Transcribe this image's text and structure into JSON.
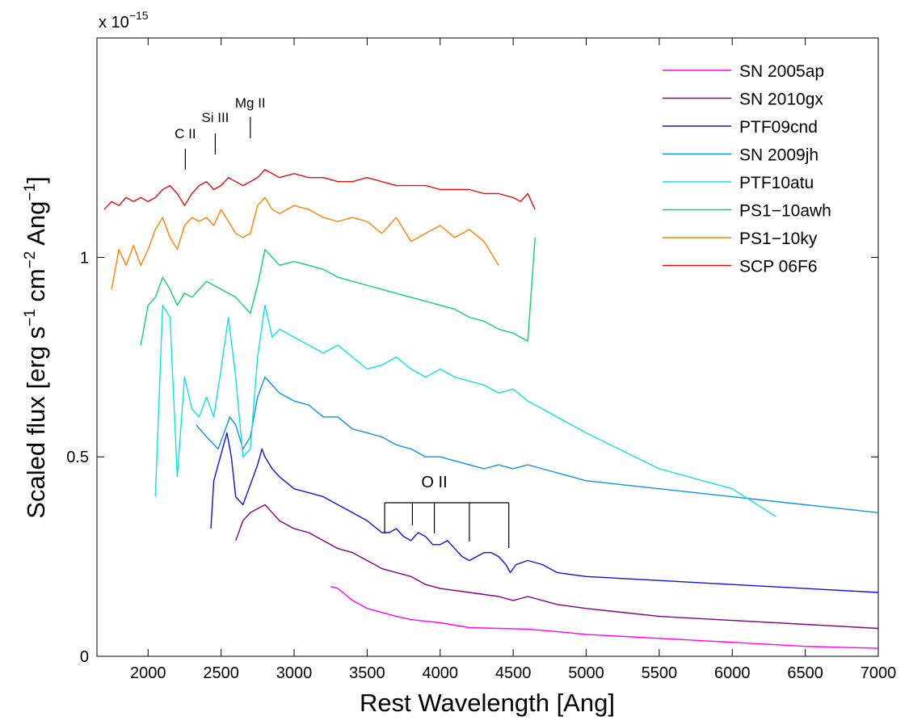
{
  "chart_data": {
    "type": "line",
    "xlabel": "Rest Wavelength [Ang]",
    "ylabel_parts": [
      "Scaled flux [erg s",
      "−1",
      " cm",
      "−2",
      " Ang",
      "−1",
      "]"
    ],
    "scale_note_base": "x 10",
    "scale_note_exp": "−15",
    "xlim": [
      1650,
      7000
    ],
    "ylim": [
      0,
      1.55
    ],
    "xticks": [
      2000,
      2500,
      3000,
      3500,
      4000,
      4500,
      5000,
      5500,
      6000,
      6500,
      7000
    ],
    "xtick_labels": [
      "2000",
      "2500",
      "3000",
      "3500",
      "4000",
      "4500",
      "5000",
      "5500",
      "6000",
      "6500",
      "7000"
    ],
    "yticks": [
      0,
      0.5,
      1
    ],
    "ytick_labels": [
      "0",
      "0.5",
      "1"
    ],
    "legend_position": "top-right",
    "annotations": {
      "uv": [
        {
          "label": "C II",
          "x": 2255
        },
        {
          "label": "Si III",
          "x": 2460
        },
        {
          "label": "Mg II",
          "x": 2700
        }
      ],
      "oii": {
        "label": "O II",
        "lines": [
          3620,
          3810,
          3960,
          4200,
          4470
        ]
      }
    },
    "series": [
      {
        "name": "SN 2005ap",
        "color": "#ff00ff",
        "x": [
          3250,
          3300,
          3350,
          3400,
          3450,
          3500,
          3600,
          3700,
          3800,
          3900,
          4000,
          4100,
          4200,
          4400,
          4600,
          4800,
          5000,
          5500,
          6000,
          6500,
          7000
        ],
        "y": [
          0.175,
          0.17,
          0.155,
          0.14,
          0.13,
          0.12,
          0.11,
          0.1,
          0.092,
          0.088,
          0.084,
          0.078,
          0.072,
          0.07,
          0.068,
          0.062,
          0.055,
          0.045,
          0.035,
          0.025,
          0.02
        ]
      },
      {
        "name": "SN 2010gx",
        "color": "#800080",
        "x": [
          2600,
          2650,
          2700,
          2750,
          2800,
          2850,
          2900,
          3000,
          3100,
          3200,
          3300,
          3400,
          3500,
          3600,
          3700,
          3800,
          3900,
          4000,
          4200,
          4400,
          4500,
          4600,
          4800,
          5000,
          5500,
          6000,
          6500,
          7000
        ],
        "y": [
          0.29,
          0.34,
          0.36,
          0.37,
          0.38,
          0.36,
          0.34,
          0.32,
          0.31,
          0.29,
          0.27,
          0.26,
          0.24,
          0.22,
          0.21,
          0.2,
          0.18,
          0.17,
          0.16,
          0.15,
          0.14,
          0.15,
          0.13,
          0.12,
          0.1,
          0.09,
          0.08,
          0.07
        ]
      },
      {
        "name": "PTF09cnd",
        "color": "#1010e0",
        "x": [
          2430,
          2450,
          2480,
          2510,
          2540,
          2570,
          2600,
          2650,
          2700,
          2750,
          2780,
          2800,
          2850,
          2900,
          3000,
          3100,
          3200,
          3300,
          3400,
          3500,
          3600,
          3650,
          3700,
          3750,
          3800,
          3850,
          3900,
          3950,
          4000,
          4050,
          4100,
          4150,
          4200,
          4250,
          4300,
          4350,
          4400,
          4450,
          4480,
          4520,
          4600,
          4700,
          4800,
          5000,
          5500,
          6000,
          6500,
          7000
        ],
        "y": [
          0.32,
          0.44,
          0.48,
          0.52,
          0.56,
          0.5,
          0.4,
          0.38,
          0.43,
          0.48,
          0.52,
          0.5,
          0.47,
          0.45,
          0.42,
          0.41,
          0.4,
          0.38,
          0.36,
          0.34,
          0.31,
          0.31,
          0.32,
          0.3,
          0.29,
          0.31,
          0.3,
          0.28,
          0.28,
          0.29,
          0.27,
          0.25,
          0.24,
          0.25,
          0.26,
          0.26,
          0.25,
          0.23,
          0.21,
          0.23,
          0.24,
          0.23,
          0.21,
          0.2,
          0.19,
          0.18,
          0.17,
          0.16
        ]
      },
      {
        "name": "SN 2009jh",
        "color": "#1090e8",
        "x": [
          2330,
          2400,
          2480,
          2520,
          2560,
          2600,
          2650,
          2700,
          2750,
          2800,
          2850,
          2900,
          3000,
          3100,
          3200,
          3300,
          3400,
          3500,
          3600,
          3700,
          3800,
          3900,
          4000,
          4100,
          4200,
          4300,
          4400,
          4500,
          4600,
          4700,
          4800,
          5000,
          5500,
          6000,
          6500,
          7000
        ],
        "y": [
          0.58,
          0.55,
          0.52,
          0.56,
          0.6,
          0.58,
          0.52,
          0.55,
          0.65,
          0.7,
          0.68,
          0.66,
          0.64,
          0.63,
          0.6,
          0.6,
          0.57,
          0.56,
          0.55,
          0.53,
          0.52,
          0.5,
          0.5,
          0.49,
          0.48,
          0.47,
          0.48,
          0.47,
          0.48,
          0.47,
          0.46,
          0.44,
          0.42,
          0.4,
          0.38,
          0.36
        ]
      },
      {
        "name": "PTF10atu",
        "color": "#10e0e0",
        "x": [
          2050,
          2100,
          2150,
          2200,
          2250,
          2300,
          2350,
          2400,
          2450,
          2500,
          2550,
          2600,
          2650,
          2700,
          2750,
          2800,
          2850,
          2900,
          3000,
          3100,
          3200,
          3300,
          3400,
          3500,
          3600,
          3700,
          3800,
          3900,
          4000,
          4100,
          4200,
          4300,
          4400,
          4500,
          4600,
          4700,
          4800,
          5000,
          5500,
          6000,
          6300
        ],
        "y": [
          0.4,
          0.88,
          0.85,
          0.45,
          0.7,
          0.62,
          0.6,
          0.65,
          0.6,
          0.72,
          0.85,
          0.7,
          0.5,
          0.52,
          0.75,
          0.88,
          0.8,
          0.82,
          0.8,
          0.78,
          0.76,
          0.78,
          0.75,
          0.72,
          0.73,
          0.75,
          0.72,
          0.7,
          0.72,
          0.7,
          0.69,
          0.68,
          0.66,
          0.67,
          0.64,
          0.62,
          0.6,
          0.56,
          0.47,
          0.42,
          0.35
        ]
      },
      {
        "name": "PS1−10awh",
        "color": "#10d070",
        "x": [
          1950,
          2000,
          2050,
          2100,
          2150,
          2200,
          2250,
          2300,
          2350,
          2400,
          2450,
          2500,
          2550,
          2600,
          2650,
          2700,
          2750,
          2800,
          2850,
          2900,
          3000,
          3100,
          3200,
          3300,
          3400,
          3500,
          3600,
          3700,
          3800,
          3900,
          4000,
          4100,
          4200,
          4300,
          4400,
          4500,
          4600,
          4650
        ],
        "y": [
          0.78,
          0.88,
          0.9,
          0.95,
          0.92,
          0.88,
          0.91,
          0.9,
          0.92,
          0.94,
          0.93,
          0.92,
          0.91,
          0.9,
          0.88,
          0.86,
          0.93,
          1.02,
          1.0,
          0.98,
          0.99,
          0.98,
          0.97,
          0.95,
          0.94,
          0.93,
          0.92,
          0.91,
          0.9,
          0.89,
          0.88,
          0.87,
          0.85,
          0.84,
          0.82,
          0.81,
          0.79,
          1.05
        ]
      },
      {
        "name": "PS1−10ky",
        "color": "#ff8000",
        "x": [
          1750,
          1800,
          1850,
          1900,
          1950,
          2000,
          2050,
          2100,
          2150,
          2200,
          2250,
          2300,
          2350,
          2400,
          2450,
          2500,
          2550,
          2600,
          2650,
          2700,
          2750,
          2800,
          2850,
          2900,
          3000,
          3100,
          3200,
          3300,
          3400,
          3500,
          3600,
          3700,
          3800,
          3900,
          4000,
          4100,
          4200,
          4300,
          4400
        ],
        "y": [
          0.92,
          1.02,
          0.98,
          1.03,
          0.98,
          1.02,
          1.07,
          1.1,
          1.05,
          1.02,
          1.08,
          1.1,
          1.09,
          1.1,
          1.08,
          1.12,
          1.09,
          1.06,
          1.05,
          1.06,
          1.13,
          1.15,
          1.12,
          1.11,
          1.13,
          1.12,
          1.1,
          1.09,
          1.1,
          1.09,
          1.06,
          1.1,
          1.04,
          1.06,
          1.08,
          1.05,
          1.07,
          1.04,
          0.98
        ]
      },
      {
        "name": "SCP 06F6",
        "color": "#e01010",
        "x": [
          1700,
          1750,
          1800,
          1850,
          1900,
          1950,
          2000,
          2050,
          2100,
          2150,
          2200,
          2250,
          2300,
          2350,
          2400,
          2450,
          2500,
          2550,
          2600,
          2650,
          2700,
          2750,
          2800,
          2850,
          2900,
          3000,
          3100,
          3200,
          3300,
          3400,
          3500,
          3600,
          3700,
          3800,
          3900,
          4000,
          4100,
          4200,
          4300,
          4400,
          4500,
          4550,
          4600,
          4650
        ],
        "y": [
          1.12,
          1.14,
          1.13,
          1.15,
          1.14,
          1.15,
          1.14,
          1.15,
          1.17,
          1.18,
          1.16,
          1.13,
          1.16,
          1.18,
          1.19,
          1.17,
          1.18,
          1.2,
          1.19,
          1.18,
          1.19,
          1.2,
          1.22,
          1.21,
          1.2,
          1.21,
          1.2,
          1.2,
          1.19,
          1.19,
          1.2,
          1.19,
          1.18,
          1.18,
          1.18,
          1.17,
          1.17,
          1.17,
          1.16,
          1.16,
          1.15,
          1.14,
          1.16,
          1.12
        ]
      }
    ]
  }
}
